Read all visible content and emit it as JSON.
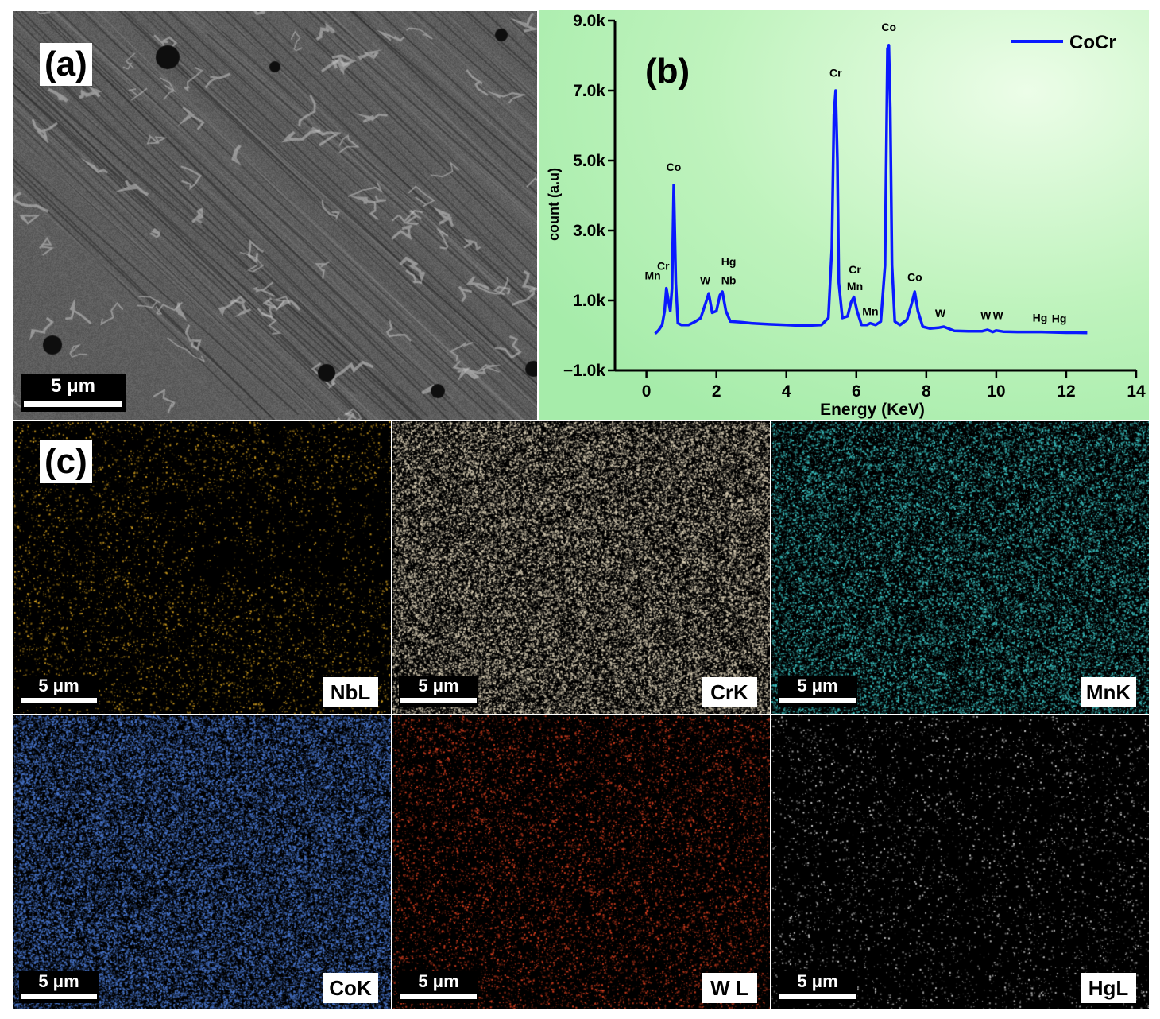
{
  "panel_a": {
    "letter": "(a)",
    "scale_bar": "5 μm"
  },
  "panel_b": {
    "letter": "(b)"
  },
  "panel_c": {
    "letter": "(c)",
    "maps": [
      {
        "element": "NbL",
        "scale_bar": "5 μm",
        "color": "#d4a020",
        "density": 0.1
      },
      {
        "element": "CrK",
        "scale_bar": "5 μm",
        "color": "#d8cdb4",
        "density": 0.45
      },
      {
        "element": "MnK",
        "scale_bar": "5 μm",
        "color": "#3cc4c4",
        "density": 0.3
      },
      {
        "element": "CoK",
        "scale_bar": "5 μm",
        "color": "#4a78d0",
        "density": 0.5
      },
      {
        "element": "W L",
        "scale_bar": "5 μm",
        "color": "#d84020",
        "density": 0.12
      },
      {
        "element": "HgL",
        "scale_bar": "5 μm",
        "color": "#d0d0d0",
        "density": 0.04
      }
    ]
  },
  "chart_data": {
    "type": "line",
    "xlabel": "Energy (KeV)",
    "ylabel": "count (a.u)",
    "xlim": [
      -0.9,
      14.0
    ],
    "ylim": [
      -1000,
      9000
    ],
    "xticks": [
      "0",
      "2",
      "4",
      "6",
      "8",
      "10",
      "12",
      "14"
    ],
    "yticks": [
      "−1.0k",
      "1.0k",
      "3.0k",
      "5.0k",
      "7.0k",
      "9.0k"
    ],
    "grid": false,
    "legend_position": "top-right",
    "series": [
      {
        "name": "CoCr",
        "color": "#0a1aff",
        "x": [
          0.25,
          0.35,
          0.45,
          0.52,
          0.57,
          0.62,
          0.68,
          0.73,
          0.78,
          0.84,
          0.9,
          1.0,
          1.2,
          1.4,
          1.55,
          1.7,
          1.78,
          1.88,
          2.0,
          2.1,
          2.17,
          2.27,
          2.4,
          2.7,
          3.0,
          3.5,
          4.0,
          4.5,
          5.0,
          5.2,
          5.3,
          5.36,
          5.41,
          5.46,
          5.5,
          5.6,
          5.75,
          5.85,
          5.93,
          6.02,
          6.15,
          6.3,
          6.4,
          6.55,
          6.7,
          6.82,
          6.89,
          6.93,
          6.97,
          7.02,
          7.1,
          7.25,
          7.45,
          7.58,
          7.67,
          7.76,
          7.9,
          8.1,
          8.35,
          8.5,
          8.8,
          9.2,
          9.6,
          9.75,
          9.9,
          10.0,
          10.2,
          10.6,
          11.0,
          11.3,
          11.6,
          12.0,
          12.3,
          12.6
        ],
        "y": [
          50,
          150,
          300,
          700,
          1350,
          1050,
          700,
          1350,
          4300,
          1500,
          350,
          300,
          300,
          400,
          500,
          950,
          1200,
          650,
          700,
          1150,
          1250,
          700,
          400,
          380,
          350,
          320,
          300,
          280,
          300,
          500,
          2500,
          6300,
          7000,
          5000,
          1500,
          500,
          550,
          950,
          1100,
          700,
          300,
          300,
          350,
          300,
          400,
          2000,
          8200,
          8300,
          6500,
          2000,
          400,
          300,
          450,
          900,
          1250,
          700,
          250,
          200,
          220,
          250,
          130,
          120,
          120,
          160,
          100,
          140,
          110,
          100,
          100,
          100,
          90,
          80,
          80,
          75
        ]
      }
    ],
    "annotations": [
      {
        "text": "Co",
        "x": 0.78,
        "y": 4700
      },
      {
        "text": "Cr",
        "x": 0.48,
        "y": 1870
      },
      {
        "text": "Mn",
        "x": 0.18,
        "y": 1600
      },
      {
        "text": "W",
        "x": 1.68,
        "y": 1470
      },
      {
        "text": "Hg",
        "x": 2.35,
        "y": 2000
      },
      {
        "text": "Nb",
        "x": 2.35,
        "y": 1470
      },
      {
        "text": "Cr",
        "x": 5.41,
        "y": 7400
      },
      {
        "text": "Co",
        "x": 6.93,
        "y": 8700
      },
      {
        "text": "Cr",
        "x": 5.96,
        "y": 1770
      },
      {
        "text": "Mn",
        "x": 5.96,
        "y": 1300
      },
      {
        "text": "Mn",
        "x": 6.4,
        "y": 580
      },
      {
        "text": "Co",
        "x": 7.67,
        "y": 1560
      },
      {
        "text": "W",
        "x": 8.4,
        "y": 520
      },
      {
        "text": "W",
        "x": 9.7,
        "y": 470
      },
      {
        "text": "W",
        "x": 10.05,
        "y": 470
      },
      {
        "text": "Hg",
        "x": 11.25,
        "y": 400
      },
      {
        "text": "Hg",
        "x": 11.8,
        "y": 380
      }
    ]
  }
}
